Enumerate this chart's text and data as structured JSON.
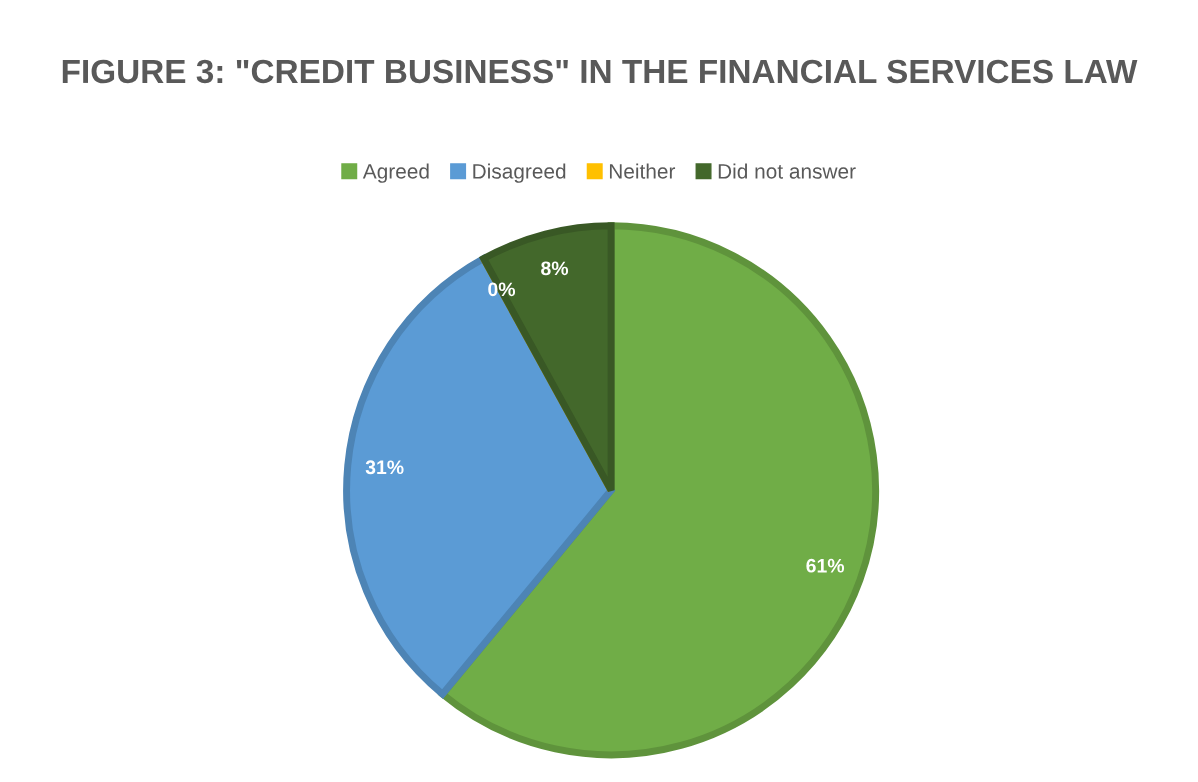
{
  "chart_data": {
    "type": "pie",
    "title": "FIGURE 3: \"CREDIT BUSINESS\" IN THE FINANCIAL SERVICES LAW",
    "categories": [
      "Agreed",
      "Disagreed",
      "Neither",
      "Did not answer"
    ],
    "values": [
      61,
      31,
      0,
      8
    ],
    "colors": [
      "#70ad47",
      "#5b9bd5",
      "#ffc000",
      "#43682b"
    ],
    "value_labels": [
      "61%",
      "31%",
      "0%",
      "8%"
    ],
    "legend": "top"
  }
}
